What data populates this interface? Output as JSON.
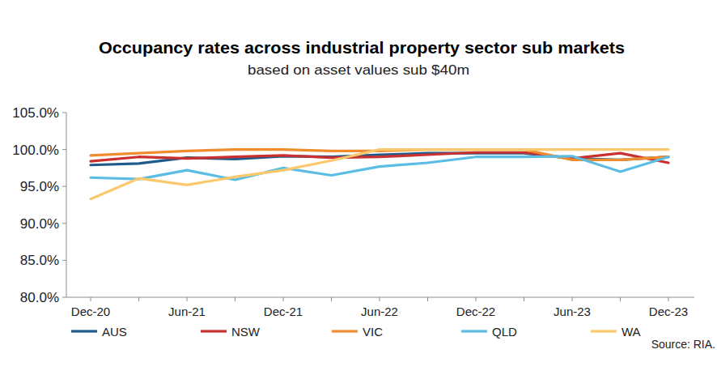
{
  "chart_data": {
    "type": "line",
    "title": "Occupancy rates across industrial property sector sub markets",
    "subtitle": "based on asset values sub $40m",
    "source": "Source: RIA.",
    "categories": [
      "Dec-20",
      null,
      "Jun-21",
      null,
      "Dec-21",
      null,
      "Jun-22",
      null,
      "Dec-22",
      null,
      "Jun-23",
      null,
      "Dec-23"
    ],
    "series": [
      {
        "name": "AUS",
        "color": "#1f5a8c",
        "values": [
          97.9,
          98.1,
          98.9,
          98.7,
          99.1,
          99.0,
          99.3,
          99.5,
          99.5,
          99.5,
          98.8,
          98.6,
          99.0
        ]
      },
      {
        "name": "NSW",
        "color": "#c8312f",
        "values": [
          98.4,
          99.0,
          98.8,
          99.0,
          99.2,
          98.9,
          99.0,
          99.3,
          99.6,
          99.6,
          98.8,
          99.5,
          98.2
        ]
      },
      {
        "name": "VIC",
        "color": "#f08c2e",
        "values": [
          99.2,
          99.5,
          99.8,
          100.0,
          100.0,
          99.8,
          99.8,
          100.0,
          100.0,
          100.0,
          98.6,
          98.6,
          99.0
        ]
      },
      {
        "name": "QLD",
        "color": "#5bbde4",
        "values": [
          96.2,
          96.0,
          97.2,
          95.9,
          97.5,
          96.5,
          97.7,
          98.2,
          99.0,
          99.0,
          99.1,
          97.0,
          99.0
        ]
      },
      {
        "name": "WA",
        "color": "#fbc96b",
        "values": [
          93.3,
          96.1,
          95.2,
          96.3,
          97.2,
          98.5,
          100.0,
          100.0,
          100.0,
          100.0,
          100.0,
          100.0,
          100.0
        ]
      }
    ],
    "ylim": [
      80,
      105
    ],
    "yticks": [
      {
        "value": 80,
        "label": "80.0%"
      },
      {
        "value": 85,
        "label": "85.0%"
      },
      {
        "value": 90,
        "label": "90.0%"
      },
      {
        "value": 95,
        "label": "95.0%"
      },
      {
        "value": 100,
        "label": "100.0%"
      },
      {
        "value": 105,
        "label": "105.0%"
      }
    ],
    "grid": false,
    "legend": "bottom"
  }
}
